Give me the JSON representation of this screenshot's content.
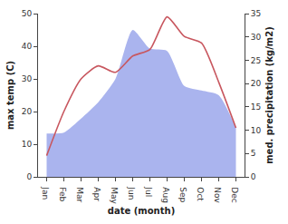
{
  "chart_data": {
    "type": "line",
    "categories": [
      "Jan",
      "Feb",
      "Mar",
      "Apr",
      "May",
      "Jun",
      "Jul",
      "Aug",
      "Sep",
      "Oct",
      "Nov",
      "Dec"
    ],
    "x_label": "date (month)",
    "y_label": "max temp (C)",
    "y2_label": "med. precipitation (kg/m2)",
    "ylim": [
      0,
      50
    ],
    "yticks": [
      0,
      10,
      20,
      30,
      40,
      50
    ],
    "y2lim": [
      0,
      35
    ],
    "y2ticks": [
      0,
      5,
      10,
      15,
      20,
      25,
      30,
      35
    ],
    "grid": false,
    "series": [
      {
        "name": "med. precipitation",
        "type": "area",
        "axis": "y2",
        "color": "#aab4ee",
        "values": [
          9.3,
          9.5,
          12.5,
          16,
          21,
          31.5,
          27.5,
          27,
          19.5,
          18.5,
          17.5,
          10.5
        ]
      },
      {
        "name": "max temp",
        "type": "line",
        "axis": "y",
        "color": "#c8575f",
        "values": [
          6.5,
          20,
          30,
          34,
          32,
          37,
          39,
          49,
          43,
          41,
          29,
          15
        ]
      }
    ]
  }
}
